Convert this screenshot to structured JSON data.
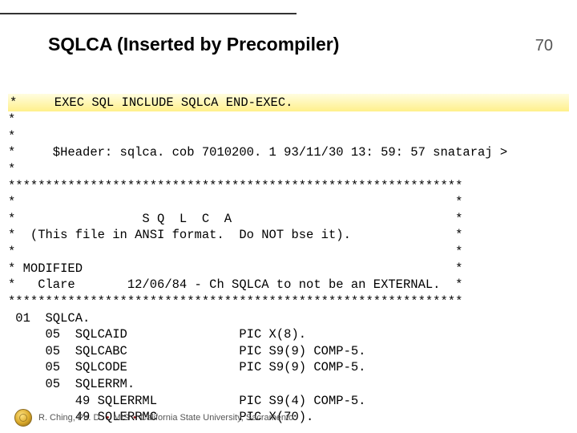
{
  "slide": {
    "title": "SQLCA (Inserted by Precompiler)",
    "number": "70"
  },
  "code": {
    "hl": "*     EXEC SQL INCLUDE SQLCA END-EXEC.",
    "l2": "*",
    "l3": "*",
    "l4": "*     $Header: sqlca. cob 7010200. 1 93/11/30 13: 59: 57 snataraj >",
    "l5": "*",
    "l6": "*************************************************************",
    "l7": "*                                                           *",
    "l8": "*                 S Q  L  C  A                              *",
    "l9": "*  (This file in ANSI format.  Do NOT bse it).              *",
    "l10": "*                                                           *",
    "l11": "* MODIFIED                                                  *",
    "l12": "*   Clare       12/06/84 - Ch SQLCA to not be an EXTERNAL.  *",
    "l13": "*************************************************************",
    "l14": " 01  SQLCA.",
    "l15": "     05  SQLCAID               PIC X(8).",
    "l16": "     05  SQLCABC               PIC S9(9) COMP-5.",
    "l17": "     05  SQLCODE               PIC S9(9) COMP-5.",
    "l18": "     05  SQLERRM.",
    "l19": "         49 SQLERRML           PIC S9(4) COMP-5.",
    "l20": "         49 SQLERRMC           PIC X(70)."
  },
  "footer": {
    "author": "R. Ching, Ph. D.",
    "dept": "MIS",
    "org": "California State University, Sacramento"
  },
  "colors": {
    "accent": "#8a1c1c",
    "text": "#000000",
    "muted": "#555555"
  }
}
